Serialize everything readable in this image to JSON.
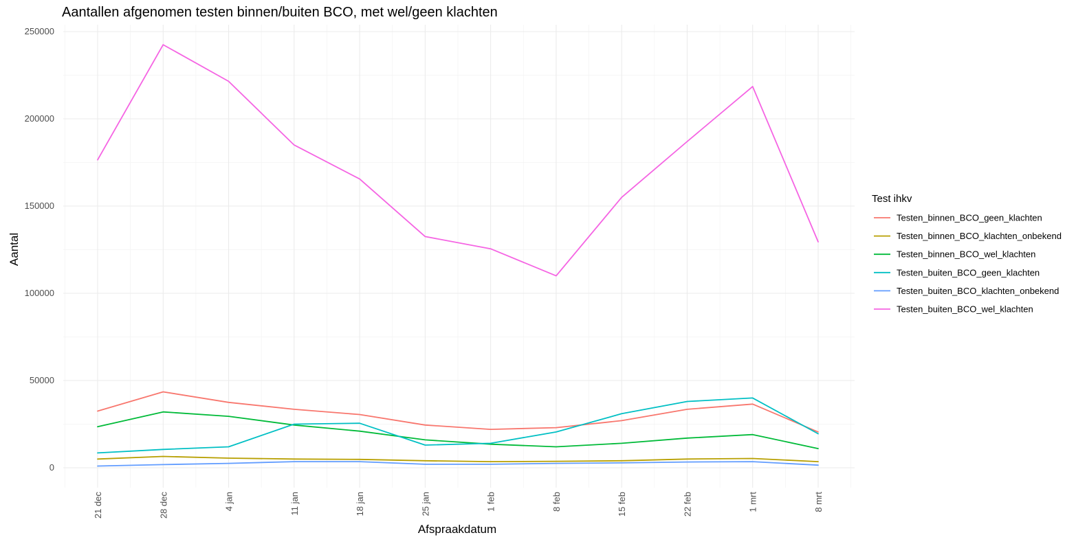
{
  "chart_data": {
    "type": "line",
    "title": "Aantallen afgenomen testen binnen/buiten BCO, met wel/geen klachten",
    "xlabel": "Afspraakdatum",
    "ylabel": "Aantal",
    "categories": [
      "21 dec",
      "28 dec",
      "4 jan",
      "11 jan",
      "18 jan",
      "25 jan",
      "1 feb",
      "8 feb",
      "15 feb",
      "22 feb",
      "1 mrt",
      "8 mrt"
    ],
    "ylim": [
      0,
      250000
    ],
    "yticks": [
      0,
      50000,
      100000,
      150000,
      200000,
      250000
    ],
    "ytick_labels": [
      "0",
      "50000",
      "100000",
      "150000",
      "200000",
      "250000"
    ],
    "grid": true,
    "legend": {
      "title": "Test ihkv",
      "position": "right"
    },
    "series": [
      {
        "name": "Testen_binnen_BCO_geen_klachten",
        "color": "#F8766D",
        "values": [
          32500,
          43500,
          37500,
          33500,
          30500,
          24500,
          22000,
          23000,
          27000,
          33500,
          36500,
          20500
        ]
      },
      {
        "name": "Testen_binnen_BCO_klachten_onbekend",
        "color": "#B79F00",
        "values": [
          5000,
          6500,
          5500,
          5000,
          4800,
          4000,
          3500,
          3700,
          4000,
          5000,
          5300,
          3500
        ]
      },
      {
        "name": "Testen_binnen_BCO_wel_klachten",
        "color": "#00BA38",
        "values": [
          23500,
          32000,
          29500,
          24500,
          21000,
          16000,
          13500,
          12000,
          14000,
          17000,
          19000,
          11000
        ]
      },
      {
        "name": "Testen_buiten_BCO_geen_klachten",
        "color": "#00BFC4",
        "values": [
          8500,
          10500,
          12000,
          25000,
          25500,
          13000,
          14000,
          20500,
          31000,
          38000,
          40000,
          19500
        ]
      },
      {
        "name": "Testen_buiten_BCO_klachten_onbekend",
        "color": "#619CFF",
        "values": [
          1000,
          1800,
          2500,
          3500,
          3500,
          2000,
          2000,
          2500,
          2800,
          3300,
          3500,
          1500
        ]
      },
      {
        "name": "Testen_buiten_BCO_wel_klachten",
        "color": "#F564E3",
        "values": [
          176500,
          242500,
          221500,
          185000,
          165500,
          132500,
          125500,
          110000,
          155000,
          187000,
          218500,
          129500
        ]
      }
    ]
  }
}
